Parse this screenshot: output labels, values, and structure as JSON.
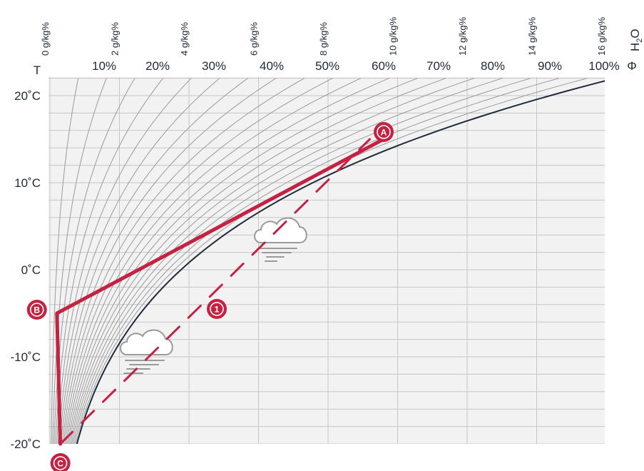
{
  "chart_data": {
    "type": "line",
    "title": "",
    "ylabel": "T",
    "phi_label": "Φ",
    "h2o_label": "H",
    "h2o_sub": "2",
    "h2o_suffix": "O",
    "ylim": [
      -20,
      22
    ],
    "y_ticks": [
      {
        "value": -20,
        "label": "-20˚C"
      },
      {
        "value": -10,
        "label": "-10˚C"
      },
      {
        "value": 0,
        "label": "0˚C"
      },
      {
        "value": 10,
        "label": "10˚C"
      },
      {
        "value": 20,
        "label": "20˚C"
      }
    ],
    "relative_humidity": {
      "labels": [
        "10%",
        "20%",
        "30%",
        "40%",
        "50%",
        "60%",
        "70%",
        "80%",
        "90%",
        "100%"
      ],
      "values": [
        10,
        20,
        30,
        40,
        50,
        60,
        70,
        80,
        90,
        100
      ]
    },
    "absolute_humidity": {
      "labels": [
        "0 g/kg%",
        "2 g/kg%",
        "4 g/kg%",
        "6 g/kg%",
        "8 g/kg%",
        "10 g/kg%",
        "12 g/kg%",
        "14 g/kg%",
        "16 g/kg%"
      ],
      "values": [
        0,
        2,
        4,
        6,
        8,
        10,
        12,
        14,
        16
      ]
    },
    "series": [
      {
        "name": "",
        "style": "solid",
        "color": "#c42242",
        "points": [
          {
            "temp": 15,
            "abs_humidity": 9.6
          },
          {
            "temp": -5,
            "abs_humidity": 0.2
          },
          {
            "temp": -20,
            "abs_humidity": 0.3
          }
        ]
      },
      {
        "name": "",
        "style": "dashed",
        "color": "#c42242",
        "points": [
          {
            "temp": -20,
            "abs_humidity": 0.3
          },
          {
            "temp": 15,
            "abs_humidity": 9.2
          }
        ]
      }
    ],
    "markers": [
      {
        "label": "A",
        "temp": 15,
        "abs_humidity": 9.6
      },
      {
        "label": "B",
        "temp": -5,
        "abs_humidity": 0.2
      },
      {
        "label": "C",
        "temp": -20,
        "abs_humidity": 0.3
      },
      {
        "label": "1",
        "temp": -4.5,
        "abs_humidity": 4.8
      }
    ],
    "icons": [
      "fog-cloud-icon",
      "fog-cloud-icon"
    ],
    "colors": {
      "plot_bg": "#f2f2f2",
      "grid": "#c7c7c7",
      "saturation_curve": "#1f2a3a",
      "rh_curves": "#9a9a9a",
      "path": "#c42242"
    }
  }
}
